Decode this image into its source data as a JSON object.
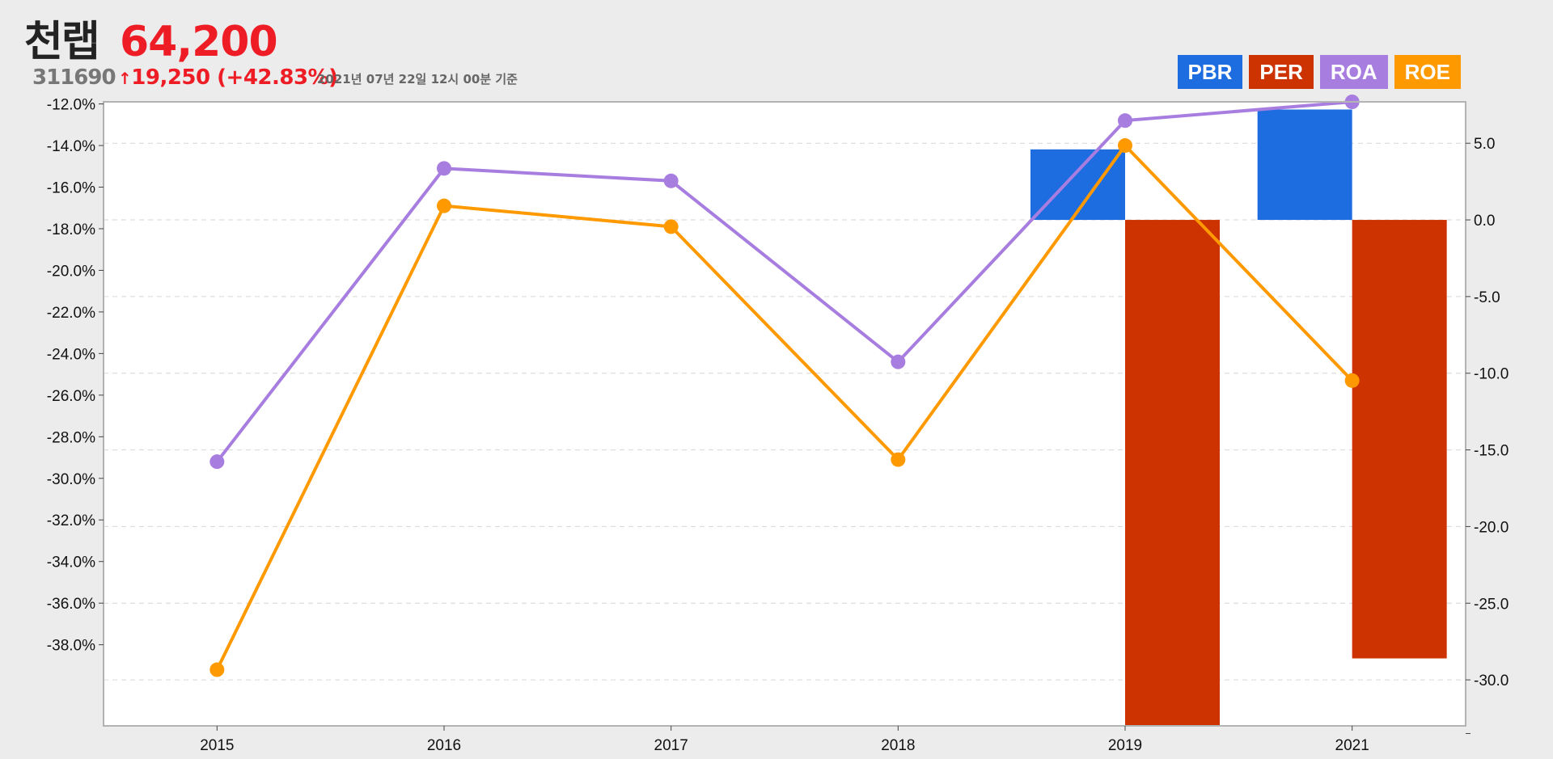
{
  "stock": {
    "name": "천랩",
    "code": "311690",
    "price": "64,200",
    "change": "19,250 (+42.83%)",
    "as_of": "2021년 07년 22일 12시 00분 기준"
  },
  "legend": [
    {
      "label": "PBR",
      "color": "#1e6de0"
    },
    {
      "label": "PER",
      "color": "#cc3300"
    },
    {
      "label": "ROA",
      "color": "#a77de0"
    },
    {
      "label": "ROE",
      "color": "#ff9900"
    }
  ],
  "chart_data": {
    "type": "bar",
    "categories": [
      "2015",
      "2016",
      "2017",
      "2018",
      "2019",
      "2021"
    ],
    "left_axis": {
      "ticks": [
        "-12.0%",
        "-14.0%",
        "-16.0%",
        "-18.0%",
        "-20.0%",
        "-22.0%",
        "-24.0%",
        "-26.0%",
        "-28.0%",
        "-30.0%",
        "-32.0%",
        "-34.0%",
        "-36.0%",
        "-38.0%"
      ],
      "range": [
        -41.9,
        -11.9
      ]
    },
    "right_axis": {
      "ticks": [
        "5.0",
        "0.0",
        "-5.0",
        "-10.0",
        "-15.0",
        "-20.0",
        "-25.0",
        "-30.0"
      ],
      "range": [
        -33.0,
        7.7
      ]
    },
    "series": [
      {
        "name": "PBR",
        "axis": "right",
        "type": "bar",
        "color": "#1e6de0",
        "values": [
          null,
          null,
          null,
          null,
          4.6,
          7.2
        ]
      },
      {
        "name": "PER",
        "axis": "right",
        "type": "bar",
        "color": "#cc3300",
        "values": [
          null,
          null,
          null,
          null,
          -33.0,
          -28.6
        ]
      },
      {
        "name": "ROA",
        "axis": "left",
        "type": "line",
        "color": "#a77de0",
        "values": [
          -29.2,
          -15.1,
          -15.7,
          -24.4,
          -12.8,
          -11.9
        ]
      },
      {
        "name": "ROE",
        "axis": "left",
        "type": "line",
        "color": "#ff9900",
        "values": [
          -39.2,
          -16.9,
          -17.9,
          -29.1,
          -14.0,
          -25.3
        ]
      }
    ],
    "grid": true,
    "legend_position": "top-right"
  }
}
